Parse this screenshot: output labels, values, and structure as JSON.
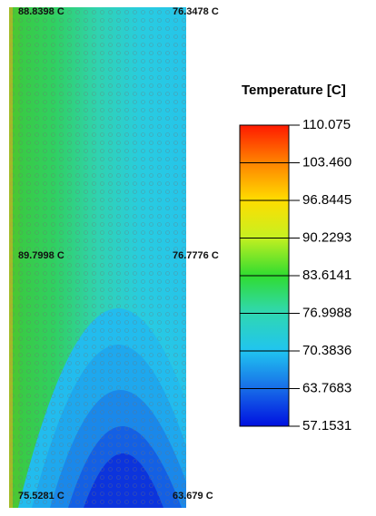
{
  "legend": {
    "title": "Temperature [C]",
    "levels": [
      "110.075",
      "103.460",
      "96.8445",
      "90.2293",
      "83.6141",
      "76.9988",
      "70.3836",
      "63.7683",
      "57.1531"
    ]
  },
  "probes": [
    "88.8398 C",
    "76.3478 C",
    "89.7998 C",
    "76.7776 C",
    "75.5281 C",
    "63.679 C"
  ]
}
